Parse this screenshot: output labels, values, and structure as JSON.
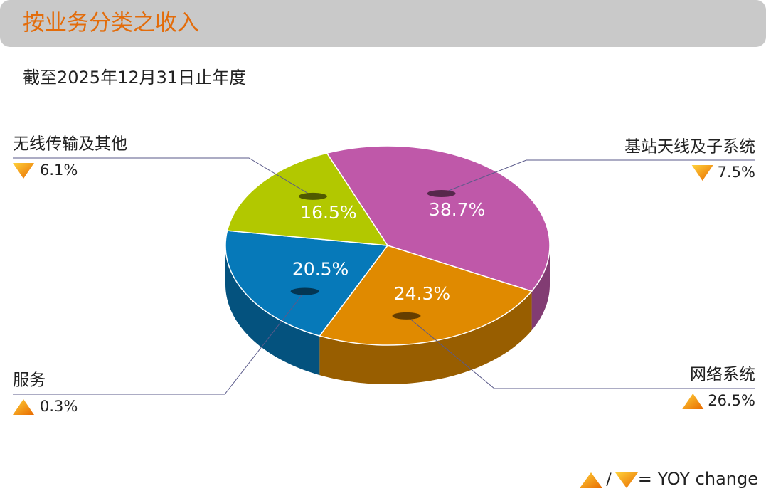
{
  "header": {
    "title": "按业务分类之收入",
    "subtitle": "截至2025年12月31日止年度"
  },
  "chart_data": {
    "type": "pie",
    "categories": [
      "基站天线及子系统",
      "网络系统",
      "服务",
      "无线传输及其他"
    ],
    "values": [
      38.7,
      24.3,
      20.5,
      16.5
    ],
    "value_labels": [
      "38.7%",
      "24.3%",
      "20.5%",
      "16.5%"
    ],
    "colors": [
      "#bf58a9",
      "#e08a00",
      "#0679b9",
      "#b2c800"
    ],
    "yoy_change": {
      "values": [
        -7.5,
        26.5,
        0.3,
        -6.1
      ],
      "value_labels": [
        "7.5%",
        "26.5%",
        "0.3%",
        "6.1%"
      ]
    },
    "yoy_legend": {
      "separator": "/",
      "text": "= YOY change"
    }
  }
}
